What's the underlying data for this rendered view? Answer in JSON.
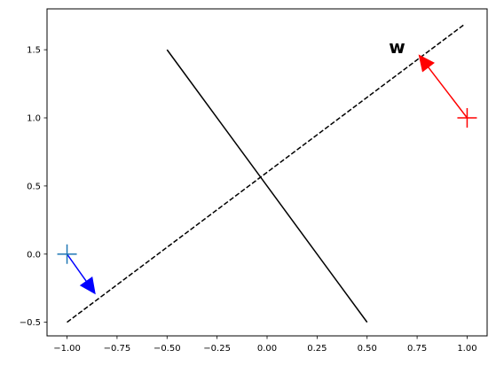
{
  "chart_data": {
    "type": "line",
    "title": "",
    "xlabel": "",
    "ylabel": "",
    "xlim": [
      -1.1,
      1.1
    ],
    "ylim": [
      -0.6,
      1.8
    ],
    "grid": false,
    "x_ticks": [
      -1.0,
      -0.75,
      -0.5,
      -0.25,
      0.0,
      0.25,
      0.5,
      0.75,
      1.0
    ],
    "x_tick_labels": [
      "−1.00",
      "−0.75",
      "−0.50",
      "−0.25",
      "0.00",
      "0.25",
      "0.50",
      "0.75",
      "1.00"
    ],
    "y_ticks": [
      -0.5,
      0.0,
      0.5,
      1.0,
      1.5
    ],
    "y_tick_labels": [
      "−0.5",
      "0.0",
      "0.5",
      "1.0",
      "1.5"
    ],
    "lines": [
      {
        "style": "dashed",
        "color": "#000000",
        "x": [
          -1.0,
          0.99
        ],
        "y": [
          -0.5,
          1.69
        ]
      },
      {
        "style": "solid",
        "color": "#000000",
        "x": [
          -0.5,
          0.5
        ],
        "y": [
          1.5,
          -0.5
        ]
      }
    ],
    "arrows": [
      {
        "color": "#ff0000",
        "from": [
          1.0,
          1.0
        ],
        "to": [
          0.76,
          1.46
        ]
      },
      {
        "color": "#0000ff",
        "from": [
          -1.0,
          0.0
        ],
        "to": [
          -0.86,
          -0.29
        ]
      }
    ],
    "markers": [
      {
        "symbol": "plus",
        "color": "#ff0000",
        "x": 1.0,
        "y": 1.0
      },
      {
        "symbol": "plus",
        "color": "#1f77b4",
        "x": -1.0,
        "y": 0.0
      }
    ],
    "annotations": [
      {
        "text": "w",
        "x": 0.65,
        "y": 1.52
      }
    ]
  }
}
